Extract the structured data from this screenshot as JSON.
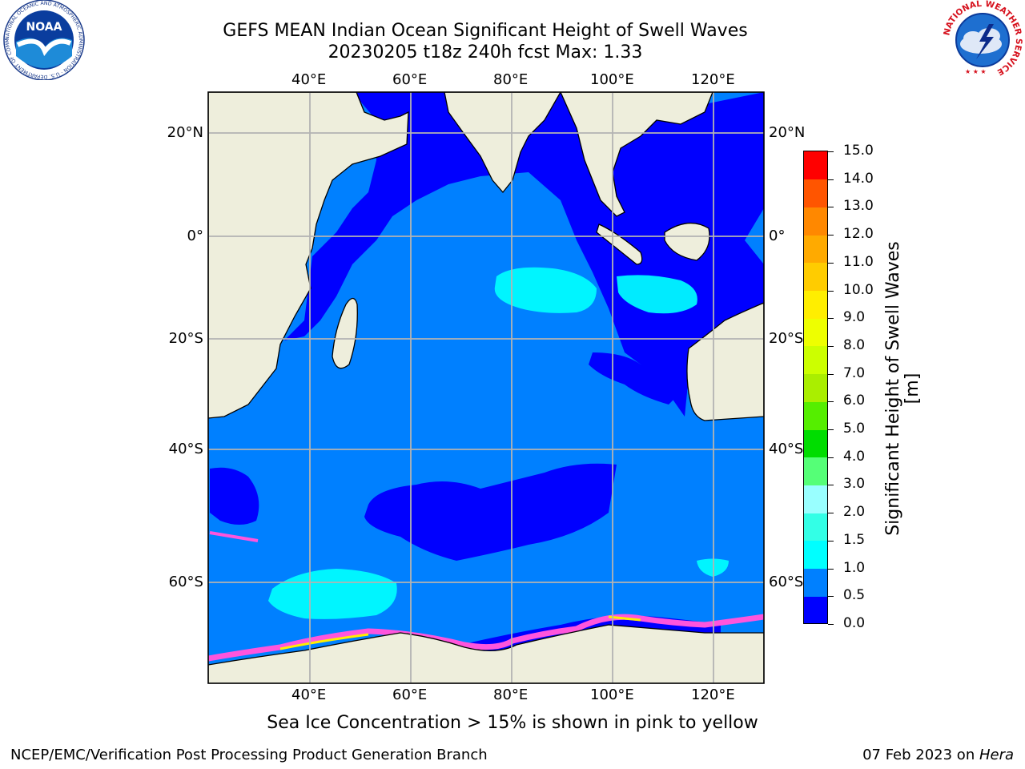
{
  "title": {
    "line1": "GEFS MEAN Indian Ocean Significant Height of Swell Waves",
    "line2": "20230205 t18z 240h fcst   Max: 1.33"
  },
  "map": {
    "lon_ticks": [
      "40°E",
      "60°E",
      "80°E",
      "100°E",
      "120°E"
    ],
    "lat_ticks": [
      "20°N",
      "0°",
      "20°S",
      "40°S",
      "60°S"
    ],
    "colors": {
      "land": "#eeeedc",
      "swell_0_0.5": "#0000ff",
      "swell_0.5_1": "#0080ff",
      "swell_1_1.5": "#00ffff",
      "ice_pink": "#ff55dd",
      "ice_yellow": "#ffee00",
      "grid": "#b3b3b3"
    }
  },
  "colorbar": {
    "label": "Significant Height of Swell Waves [m]",
    "ticks": [
      "0.0",
      "0.5",
      "1.0",
      "1.5",
      "2.0",
      "3.0",
      "4.0",
      "5.0",
      "6.0",
      "7.0",
      "8.0",
      "9.0",
      "10.0",
      "11.0",
      "12.0",
      "13.0",
      "14.0",
      "15.0"
    ],
    "colors": [
      "#0000ff",
      "#0080ff",
      "#00ffff",
      "#33ffe6",
      "#99ffff",
      "#55ff77",
      "#00dd00",
      "#55ee00",
      "#aaee00",
      "#ccff00",
      "#eeff00",
      "#ffee00",
      "#ffcc00",
      "#ffaa00",
      "#ff8800",
      "#ff5500",
      "#ff0000"
    ]
  },
  "note": "Sea Ice Concentration > 15% is shown in pink to yellow",
  "footer": {
    "left": "NCEP/EMC/Verification Post Processing Product Generation Branch",
    "right_date": "07 Feb 2023 on ",
    "right_host": "Hera"
  },
  "logos": {
    "noaa_text": "NOAA",
    "noaa_ring": "NATIONAL OCEANIC AND ATMOSPHERIC ADMINISTRATION · U.S. DEPARTMENT OF COMMERCE",
    "nws_ring": "NATIONAL WEATHER SERVICE"
  }
}
